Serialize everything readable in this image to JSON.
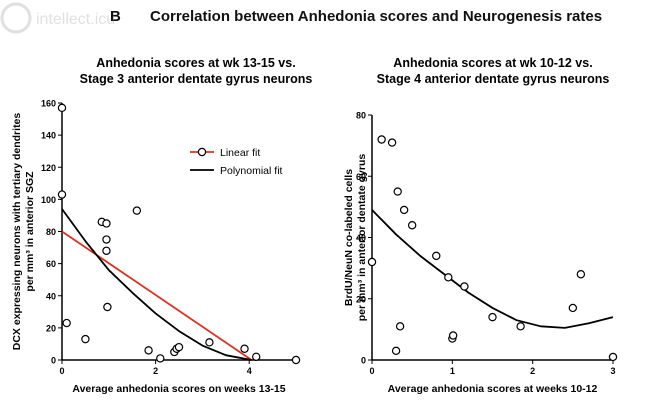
{
  "figure": {
    "panel_letter": "B",
    "title": "Correlation between Anhedonia scores and Neurogenesis rates",
    "watermark": "intellect.icu"
  },
  "chart_data": [
    {
      "type": "scatter",
      "title_lines": [
        "Anhedonia scores at wk 13-15 vs.",
        "Stage 3 anterior dentate gyrus neurons"
      ],
      "xlabel": "Average anhedonia scores on weeks 13-15",
      "ylabel_lines": [
        "DCX expressing neurons with tertiary dendrites",
        "per mm³ in anterior SGZ"
      ],
      "xlim": [
        0,
        5
      ],
      "ylim": [
        0,
        160
      ],
      "xticks": [
        0,
        2,
        4
      ],
      "yticks": [
        0,
        20,
        40,
        60,
        80,
        100,
        120,
        140,
        160
      ],
      "grid": false,
      "legend_position": "top-right",
      "points": {
        "x": [
          0.0,
          0.0,
          0.1,
          0.5,
          0.85,
          0.95,
          0.95,
          0.95,
          0.97,
          1.6,
          1.85,
          2.1,
          2.4,
          2.45,
          2.5,
          3.15,
          3.9,
          4.15,
          5.0
        ],
        "y": [
          157,
          103,
          23,
          13,
          86,
          85,
          75,
          68,
          33,
          93,
          6,
          1,
          5,
          7,
          8,
          11,
          7,
          2,
          0
        ]
      },
      "series": [
        {
          "name": "Linear fit",
          "color": "#e0301e",
          "kind": "line",
          "x": [
            0,
            4.05
          ],
          "y": [
            80,
            0
          ]
        },
        {
          "name": "Polynomial fit",
          "color": "#000000",
          "kind": "curve",
          "x": [
            0,
            0.5,
            1.0,
            1.5,
            2.0,
            2.5,
            3.0,
            3.5,
            4.05
          ],
          "y": [
            94,
            74,
            56,
            42,
            29,
            18,
            9,
            3,
            0
          ]
        }
      ]
    },
    {
      "type": "scatter",
      "title_lines": [
        "Anhedonia scores at wk 10-12 vs.",
        "Stage 4 anterior dentate gyrus neurons"
      ],
      "xlabel": "Average anhedonia scores at weeks 10-12",
      "ylabel_lines": [
        "BrdU/NeuN co-labeled cells",
        "per mm³ in anterior dentate gyrus"
      ],
      "xlim": [
        0,
        3
      ],
      "ylim": [
        0,
        80
      ],
      "xticks": [
        0,
        1,
        2,
        3
      ],
      "yticks": [
        0,
        20,
        40,
        60,
        80
      ],
      "grid": false,
      "points": {
        "x": [
          0.0,
          0.12,
          0.25,
          0.3,
          0.32,
          0.35,
          0.4,
          0.5,
          0.8,
          0.95,
          1.0,
          1.01,
          1.15,
          1.5,
          1.85,
          2.5,
          2.6,
          3.0
        ],
        "y": [
          32,
          72,
          71,
          3,
          55,
          11,
          49,
          44,
          34,
          27,
          7,
          8,
          24,
          14,
          11,
          17,
          28,
          1
        ]
      },
      "series": [
        {
          "name": "",
          "color": "#000000",
          "kind": "curve",
          "x": [
            0,
            0.3,
            0.6,
            0.9,
            1.2,
            1.5,
            1.8,
            2.1,
            2.4,
            2.7,
            3.0
          ],
          "y": [
            49,
            41,
            34,
            28,
            22,
            17,
            13,
            11,
            10.5,
            12,
            14
          ]
        }
      ]
    }
  ]
}
